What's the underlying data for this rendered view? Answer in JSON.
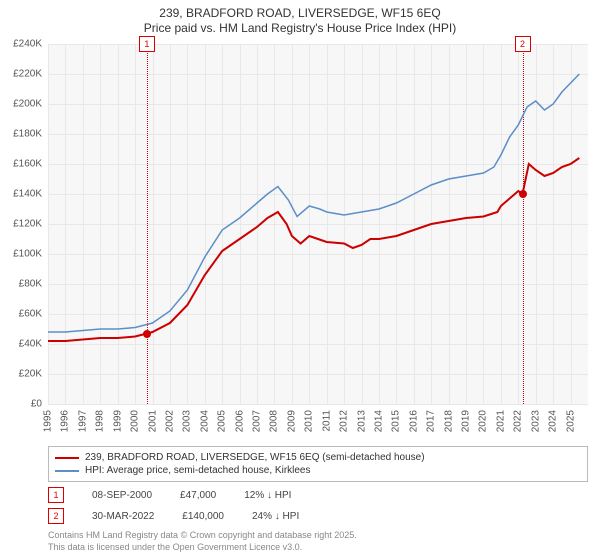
{
  "title": {
    "line1": "239, BRADFORD ROAD, LIVERSEDGE, WF15 6EQ",
    "line2": "Price paid vs. HM Land Registry's House Price Index (HPI)",
    "fontsize": 12,
    "color": "#333333"
  },
  "chart": {
    "type": "line",
    "background_color": "#f7f7f7",
    "grid_color": "#e8e8e8",
    "x": {
      "min": 1995,
      "max": 2026,
      "ticks": [
        1995,
        1996,
        1997,
        1998,
        1999,
        2000,
        2001,
        2002,
        2003,
        2004,
        2005,
        2006,
        2007,
        2008,
        2009,
        2010,
        2011,
        2012,
        2013,
        2014,
        2015,
        2016,
        2017,
        2018,
        2019,
        2020,
        2021,
        2022,
        2023,
        2024,
        2025
      ],
      "label_fontsize": 10,
      "rotation": -90
    },
    "y": {
      "min": 0,
      "max": 240000,
      "ticks": [
        0,
        20000,
        40000,
        60000,
        80000,
        100000,
        120000,
        140000,
        160000,
        180000,
        200000,
        220000,
        240000
      ],
      "tick_labels": [
        "£0",
        "£20K",
        "£40K",
        "£60K",
        "£80K",
        "£100K",
        "£120K",
        "£140K",
        "£160K",
        "£180K",
        "£200K",
        "£220K",
        "£240K"
      ],
      "label_fontsize": 10
    },
    "series": [
      {
        "name": "price_paid",
        "label": "239, BRADFORD ROAD, LIVERSEDGE, WF15 6EQ (semi-detached house)",
        "color": "#cc0000",
        "line_width": 2,
        "points": [
          [
            1995,
            42000
          ],
          [
            1996,
            42000
          ],
          [
            1997,
            43000
          ],
          [
            1998,
            44000
          ],
          [
            1999,
            44000
          ],
          [
            2000,
            45000
          ],
          [
            2000.68,
            47000
          ],
          [
            2001,
            48000
          ],
          [
            2002,
            54000
          ],
          [
            2003,
            66000
          ],
          [
            2004,
            86000
          ],
          [
            2005,
            102000
          ],
          [
            2006,
            110000
          ],
          [
            2007,
            118000
          ],
          [
            2007.6,
            124000
          ],
          [
            2008.2,
            128000
          ],
          [
            2008.7,
            120000
          ],
          [
            2009,
            112000
          ],
          [
            2009.5,
            107000
          ],
          [
            2010,
            112000
          ],
          [
            2010.5,
            110000
          ],
          [
            2011,
            108000
          ],
          [
            2012,
            107000
          ],
          [
            2012.5,
            104000
          ],
          [
            2013,
            106000
          ],
          [
            2013.5,
            110000
          ],
          [
            2014,
            110000
          ],
          [
            2015,
            112000
          ],
          [
            2016,
            116000
          ],
          [
            2017,
            120000
          ],
          [
            2018,
            122000
          ],
          [
            2019,
            124000
          ],
          [
            2020,
            125000
          ],
          [
            2020.8,
            128000
          ],
          [
            2021,
            132000
          ],
          [
            2021.5,
            137000
          ],
          [
            2022,
            142000
          ],
          [
            2022.24,
            140000
          ],
          [
            2022.6,
            160000
          ],
          [
            2023,
            156000
          ],
          [
            2023.5,
            152000
          ],
          [
            2024,
            154000
          ],
          [
            2024.5,
            158000
          ],
          [
            2025,
            160000
          ],
          [
            2025.5,
            164000
          ]
        ]
      },
      {
        "name": "hpi",
        "label": "HPI: Average price, semi-detached house, Kirklees",
        "color": "#5b8fc7",
        "line_width": 1.5,
        "points": [
          [
            1995,
            48000
          ],
          [
            1996,
            48000
          ],
          [
            1997,
            49000
          ],
          [
            1998,
            50000
          ],
          [
            1999,
            50000
          ],
          [
            2000,
            51000
          ],
          [
            2001,
            54000
          ],
          [
            2002,
            62000
          ],
          [
            2003,
            76000
          ],
          [
            2004,
            98000
          ],
          [
            2005,
            116000
          ],
          [
            2006,
            124000
          ],
          [
            2007,
            134000
          ],
          [
            2007.6,
            140000
          ],
          [
            2008.2,
            145000
          ],
          [
            2008.8,
            136000
          ],
          [
            2009.3,
            125000
          ],
          [
            2010,
            132000
          ],
          [
            2010.6,
            130000
          ],
          [
            2011,
            128000
          ],
          [
            2012,
            126000
          ],
          [
            2013,
            128000
          ],
          [
            2014,
            130000
          ],
          [
            2015,
            134000
          ],
          [
            2016,
            140000
          ],
          [
            2017,
            146000
          ],
          [
            2018,
            150000
          ],
          [
            2019,
            152000
          ],
          [
            2020,
            154000
          ],
          [
            2020.6,
            158000
          ],
          [
            2021,
            166000
          ],
          [
            2021.5,
            178000
          ],
          [
            2022,
            186000
          ],
          [
            2022.5,
            198000
          ],
          [
            2023,
            202000
          ],
          [
            2023.5,
            196000
          ],
          [
            2024,
            200000
          ],
          [
            2024.5,
            208000
          ],
          [
            2025,
            214000
          ],
          [
            2025.5,
            220000
          ]
        ]
      }
    ],
    "markers": [
      {
        "id": "1",
        "x": 2000.68,
        "y": 47000
      },
      {
        "id": "2",
        "x": 2022.24,
        "y": 140000
      }
    ],
    "marker_line_color": "#d00000",
    "marker_dot_color": "#d00000"
  },
  "legend": {
    "border_color": "#bbbbbb",
    "fontsize": 10
  },
  "sales": [
    {
      "id": "1",
      "date": "08-SEP-2000",
      "price": "£47,000",
      "diff": "12% ↓ HPI"
    },
    {
      "id": "2",
      "date": "30-MAR-2022",
      "price": "£140,000",
      "diff": "24% ↓ HPI"
    }
  ],
  "footer": {
    "line1": "Contains HM Land Registry data © Crown copyright and database right 2025.",
    "line2": "This data is licensed under the Open Government Licence v3.0.",
    "fontsize": 9,
    "color": "#888888"
  }
}
